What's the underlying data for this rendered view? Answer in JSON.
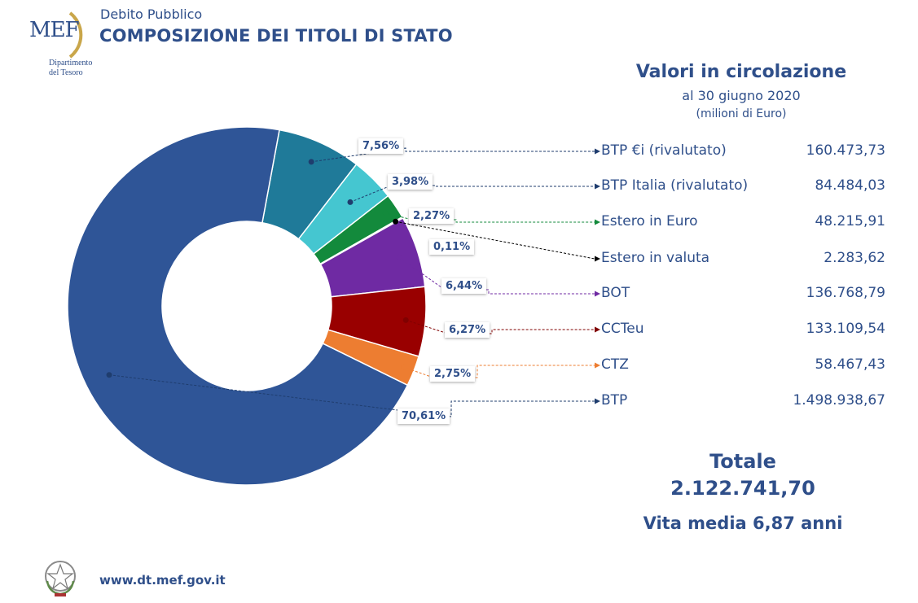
{
  "header": {
    "subtitle": "Debito Pubblico",
    "title": "COMPOSIZIONE DEI TITOLI DI STATO",
    "logo_text": "MEF",
    "logo_dept_line1": "Dipartimento",
    "logo_dept_line2": "del Tesoro"
  },
  "panel": {
    "title": "Valori in circolazione",
    "date": "al 30 giugno 2020",
    "unit": "(milioni di Euro)"
  },
  "totals": {
    "label": "Totale",
    "value": "2.122.741,70",
    "vita_media": "Vita media 6,87 anni"
  },
  "footer": {
    "url": "www.dt.mef.gov.it"
  },
  "chart_data": {
    "type": "pie",
    "donut": true,
    "legend_placement": "right",
    "series": [
      {
        "name": "BTP €i (rivalutato)",
        "percent_label": "7,56%",
        "percent": 7.56,
        "value": 160473.73,
        "value_label": "160.473,73",
        "color": "#1f7a99"
      },
      {
        "name": "BTP Italia (rivalutato)",
        "percent_label": "3,98%",
        "percent": 3.98,
        "value": 84484.03,
        "value_label": "84.484,03",
        "color": "#45c6d0"
      },
      {
        "name": "Estero in Euro",
        "percent_label": "2,27%",
        "percent": 2.27,
        "value": 48215.91,
        "value_label": "48.215,91",
        "color": "#138a3c"
      },
      {
        "name": "Estero in valuta",
        "percent_label": "0,11%",
        "percent": 0.11,
        "value": 2283.62,
        "value_label": "2.283,62",
        "color": "#0c5a2a"
      },
      {
        "name": "BOT",
        "percent_label": "6,44%",
        "percent": 6.44,
        "value": 136768.79,
        "value_label": "136.768,79",
        "color": "#6f2aa3"
      },
      {
        "name": "CCTeu",
        "percent_label": "6,27%",
        "percent": 6.27,
        "value": 133109.54,
        "value_label": "133.109,54",
        "color": "#990000"
      },
      {
        "name": "CTZ",
        "percent_label": "2,75%",
        "percent": 2.75,
        "value": 58467.43,
        "value_label": "58.467,43",
        "color": "#ed7d31"
      },
      {
        "name": "BTP",
        "percent_label": "70,61%",
        "percent": 70.61,
        "value": 1498938.67,
        "value_label": "1.498.938,67",
        "color": "#2f5597"
      }
    ]
  }
}
